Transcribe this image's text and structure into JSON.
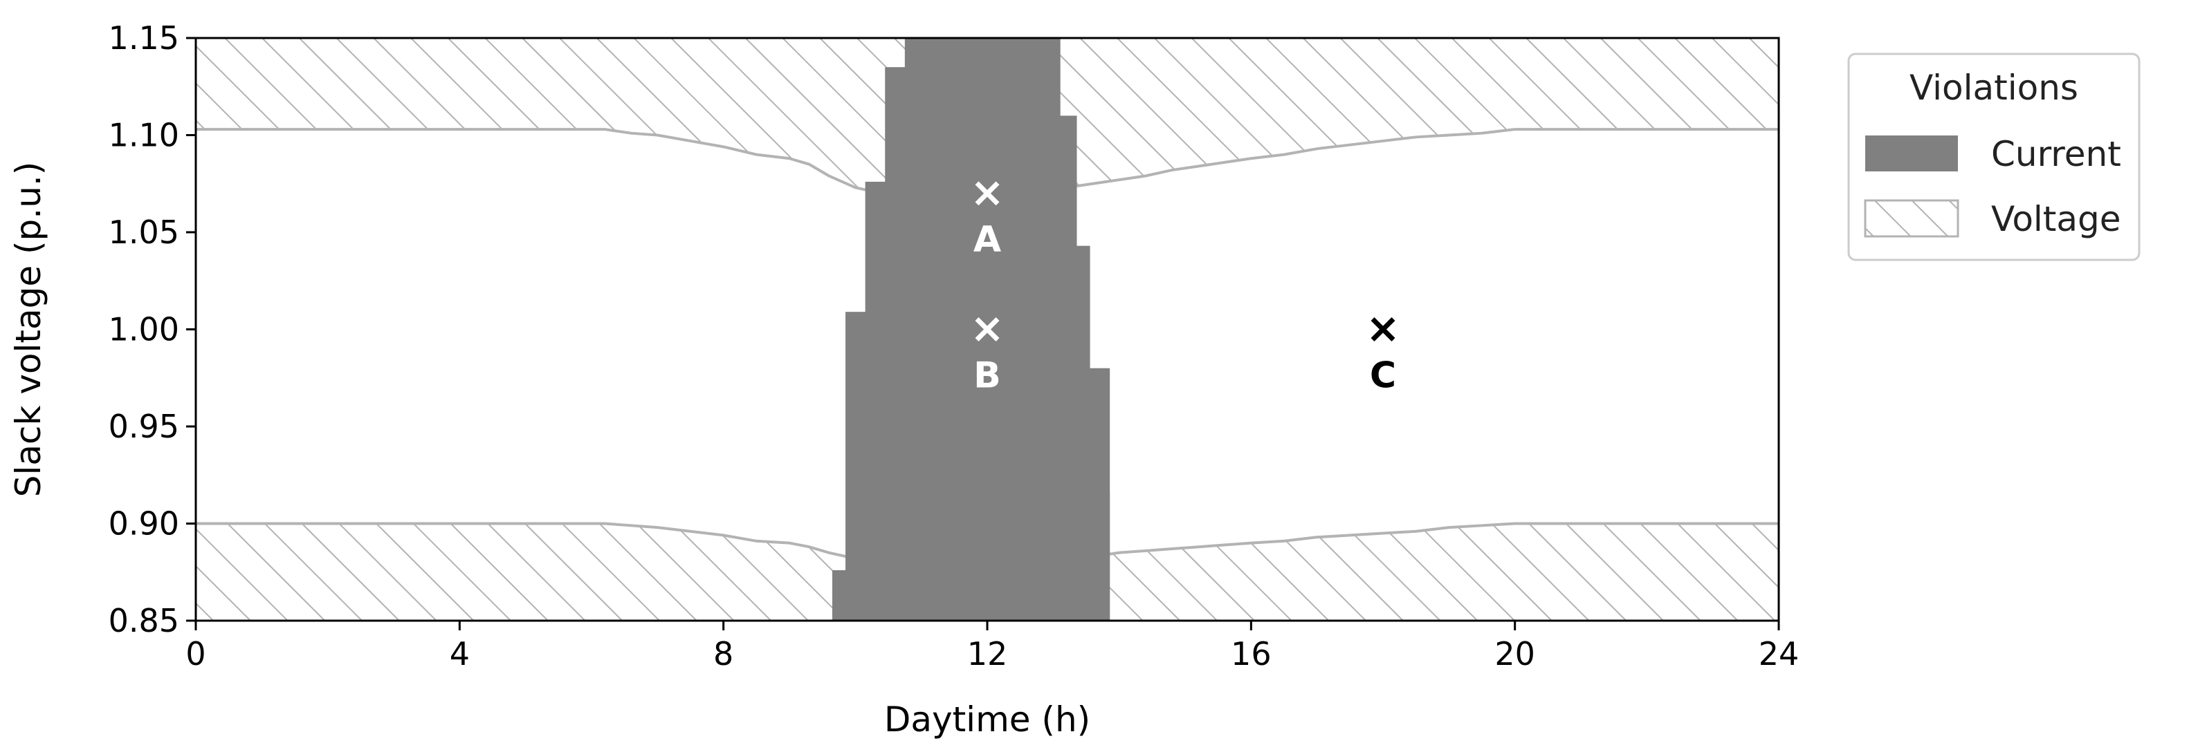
{
  "chart_data": {
    "type": "area",
    "title": "",
    "xlabel": "Daytime (h)",
    "ylabel": "Slack voltage (p.u.)",
    "xlim": [
      0,
      24
    ],
    "ylim": [
      0.85,
      1.15
    ],
    "xticks": [
      "0",
      "4",
      "8",
      "12",
      "16",
      "20",
      "24"
    ],
    "yticks": [
      "0.85",
      "0.90",
      "0.95",
      "1.00",
      "1.05",
      "1.10",
      "1.15"
    ],
    "grid": false,
    "legend": {
      "title": "Violations",
      "placement": "outside-right-top",
      "entries": [
        {
          "name": "Current",
          "style": "solid",
          "color": "#808080"
        },
        {
          "name": "Voltage",
          "style": "hatch",
          "color": "#b3b3b3"
        }
      ]
    },
    "series": [
      {
        "name": "Voltage",
        "kind": "upper-violation-boundary",
        "fill_to": 1.15,
        "x": [
          0,
          6.2,
          6.6,
          7.0,
          7.5,
          8.0,
          8.5,
          9.0,
          9.3,
          9.6,
          10.0,
          10.4,
          10.8,
          11.2,
          11.6,
          12.0,
          12.4,
          12.8,
          13.2,
          13.6,
          14.0,
          14.4,
          14.8,
          15.2,
          15.6,
          16.0,
          16.5,
          17.0,
          17.5,
          18.0,
          18.5,
          19.0,
          19.5,
          20.0,
          24
        ],
        "y": [
          1.103,
          1.103,
          1.101,
          1.1,
          1.097,
          1.094,
          1.09,
          1.088,
          1.085,
          1.079,
          1.073,
          1.07,
          1.067,
          1.066,
          1.065,
          1.065,
          1.068,
          1.07,
          1.073,
          1.075,
          1.077,
          1.079,
          1.082,
          1.084,
          1.086,
          1.088,
          1.09,
          1.093,
          1.095,
          1.097,
          1.099,
          1.1,
          1.101,
          1.103,
          1.103
        ]
      },
      {
        "name": "Voltage",
        "kind": "lower-violation-boundary",
        "fill_to": 0.85,
        "x": [
          0,
          6.2,
          6.6,
          7.0,
          7.5,
          8.0,
          8.5,
          9.0,
          9.3,
          9.6,
          10.0,
          10.4,
          10.8,
          11.2,
          11.6,
          12.0,
          12.4,
          12.8,
          13.2,
          13.6,
          14.0,
          14.4,
          14.8,
          15.2,
          15.6,
          16.0,
          16.5,
          17.0,
          17.5,
          18.0,
          18.5,
          19.0,
          19.5,
          20.0,
          24
        ],
        "y": [
          0.9,
          0.9,
          0.899,
          0.898,
          0.896,
          0.894,
          0.891,
          0.89,
          0.888,
          0.885,
          0.882,
          0.881,
          0.88,
          0.879,
          0.878,
          0.878,
          0.879,
          0.88,
          0.882,
          0.883,
          0.885,
          0.886,
          0.887,
          0.888,
          0.889,
          0.89,
          0.891,
          0.893,
          0.894,
          0.895,
          0.896,
          0.898,
          0.899,
          0.9,
          0.9
        ]
      },
      {
        "name": "Current",
        "kind": "step-band",
        "x_edges": [
          9.65,
          9.85,
          10.15,
          10.45,
          10.75,
          13.1,
          13.35,
          13.55,
          13.85
        ],
        "lower": [
          0.85,
          0.85,
          0.85,
          0.85,
          0.85,
          0.85,
          0.85,
          0.85
        ],
        "upper": [
          0.876,
          1.009,
          1.076,
          1.135,
          1.15,
          1.11,
          1.043,
          0.98
        ]
      },
      {
        "name": "Current",
        "kind": "step-band-top-edge",
        "x_edges": [
          13.55,
          13.85
        ],
        "lower": [
          0.85
        ],
        "upper": [
          0.916
        ]
      }
    ],
    "points": [
      {
        "label": "A",
        "x": 12,
        "y": 1.07,
        "color": "#ffffff"
      },
      {
        "label": "B",
        "x": 12,
        "y": 1.0,
        "color": "#ffffff"
      },
      {
        "label": "C",
        "x": 18,
        "y": 1.0,
        "color": "#000000"
      }
    ]
  }
}
